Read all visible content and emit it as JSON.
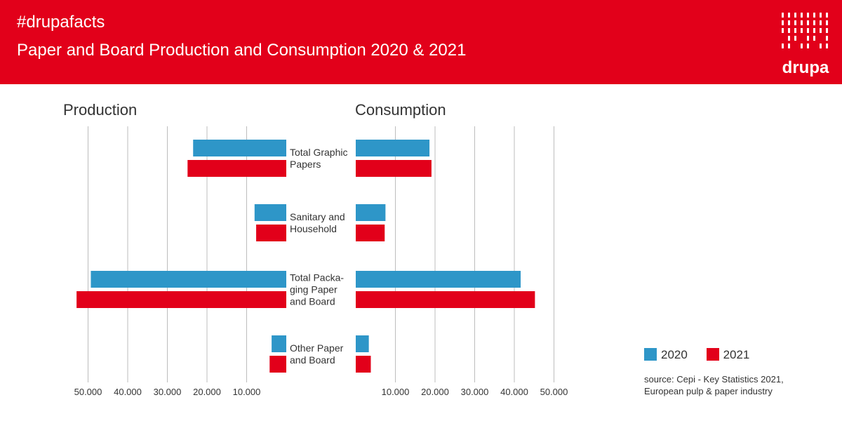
{
  "header": {
    "hashtag": "#drupafacts",
    "title": "Paper and Board Production and Consumption 2020 & 2021",
    "logo_text": "drupa",
    "background": "#e2001a"
  },
  "chart_data": {
    "type": "bar",
    "orientation": "horizontal-butterfly",
    "panels": [
      {
        "title": "Production",
        "direction": "left",
        "tick_labels": [
          "50.000",
          "40.000",
          "30.000",
          "20.000",
          "10.000"
        ]
      },
      {
        "title": "Consumption",
        "direction": "right",
        "tick_labels": [
          "10.000",
          "20.000",
          "30.000",
          "40.000",
          "50.000"
        ]
      }
    ],
    "categories": [
      [
        "Total Graphic",
        "Papers"
      ],
      [
        "Sanitary and",
        "Household"
      ],
      [
        "Total Packa-",
        "ging Paper",
        "and Board"
      ],
      [
        "Other Paper",
        "and Board"
      ]
    ],
    "xlim": [
      0,
      50000
    ],
    "grid": true,
    "series": [
      {
        "name": "2020",
        "color": "#2e96c8",
        "production": [
          23500,
          8000,
          49300,
          3700
        ],
        "consumption": [
          18600,
          7500,
          41600,
          3300
        ]
      },
      {
        "name": "2021",
        "color": "#e2001a",
        "production": [
          24900,
          7600,
          52900,
          4200
        ],
        "consumption": [
          19100,
          7300,
          45200,
          3800
        ]
      }
    ],
    "legend": "bottom-right"
  },
  "source": [
    "source: Cepi - Key Statistics 2021,",
    "European pulp & paper industry"
  ]
}
